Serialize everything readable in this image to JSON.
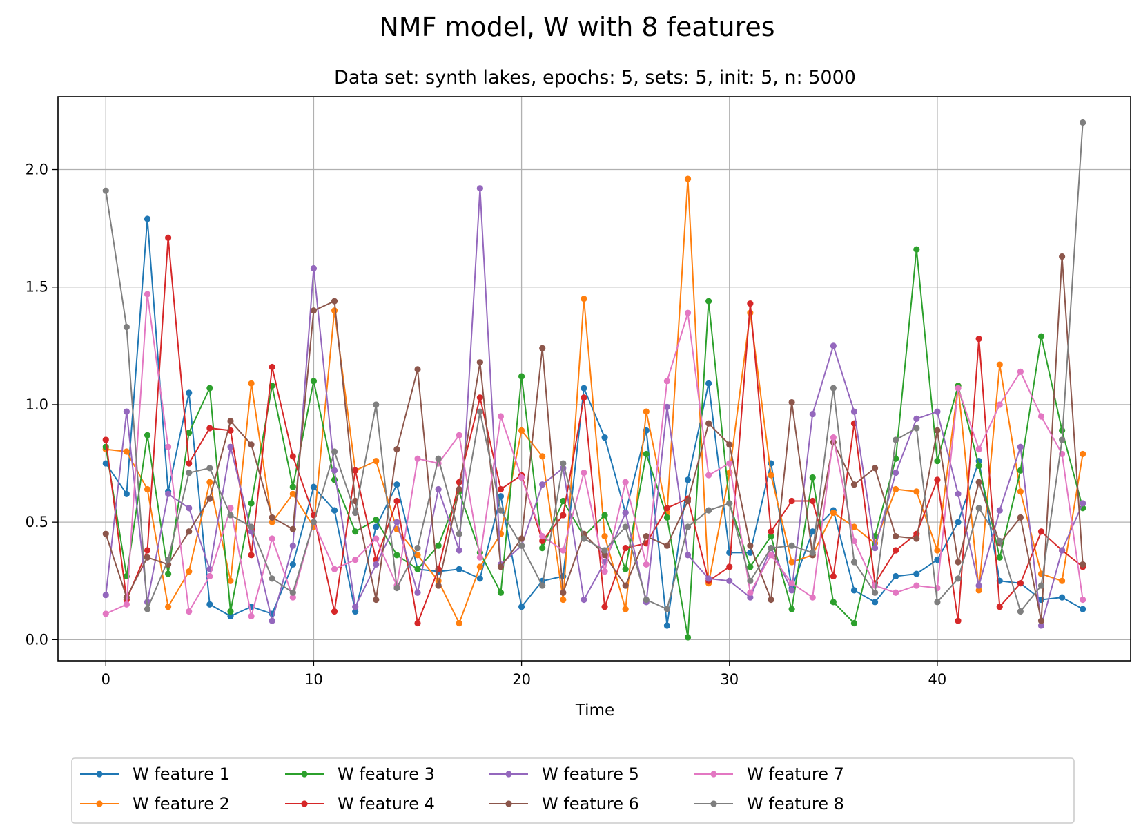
{
  "chart_data": {
    "type": "line",
    "title": "NMF model, W with 8 features",
    "subtitle": "Data set: synth lakes, epochs: 5, sets: 5, init: 5, n: 5000",
    "xlabel": "Time",
    "ylabel": "",
    "xlim": [
      -2.3,
      49.3
    ],
    "ylim": [
      -0.09,
      2.31
    ],
    "xticks": [
      0,
      10,
      20,
      30,
      40
    ],
    "yticks": [
      0.0,
      0.5,
      1.0,
      1.5,
      2.0
    ],
    "xtick_labels": [
      "0",
      "10",
      "20",
      "30",
      "40"
    ],
    "ytick_labels": [
      "0.0",
      "0.5",
      "1.0",
      "1.5",
      "2.0"
    ],
    "grid": true,
    "legend_position": "bottom-center",
    "series": [
      {
        "name": "W feature 1",
        "color": "#1f77b4",
        "values": [
          0.75,
          0.62,
          1.79,
          0.63,
          1.05,
          0.15,
          0.1,
          0.14,
          0.11,
          0.32,
          0.65,
          0.55,
          0.12,
          0.48,
          0.66,
          0.3,
          0.29,
          0.3,
          0.26,
          0.61,
          0.14,
          0.25,
          0.27,
          1.07,
          0.86,
          0.54,
          0.89,
          0.06,
          0.68,
          1.09,
          0.37,
          0.37,
          0.75,
          0.22,
          0.46,
          0.55,
          0.21,
          0.16,
          0.27,
          0.28,
          0.34,
          0.5,
          0.76,
          0.25,
          0.24,
          0.17,
          0.18,
          0.13
        ]
      },
      {
        "name": "W feature 2",
        "color": "#ff7f0e",
        "values": [
          0.81,
          0.8,
          0.64,
          0.14,
          0.29,
          0.67,
          0.25,
          1.09,
          0.5,
          0.62,
          0.48,
          1.4,
          0.72,
          0.76,
          0.47,
          0.36,
          0.25,
          0.07,
          0.31,
          0.45,
          0.89,
          0.78,
          0.17,
          1.45,
          0.44,
          0.13,
          0.97,
          0.54,
          1.96,
          0.24,
          0.71,
          1.39,
          0.7,
          0.33,
          0.36,
          0.54,
          0.48,
          0.41,
          0.64,
          0.63,
          0.38,
          1.08,
          0.21,
          1.17,
          0.63,
          0.28,
          0.25,
          0.79
        ]
      },
      {
        "name": "W feature 3",
        "color": "#2ca02c",
        "values": [
          0.82,
          0.27,
          0.87,
          0.28,
          0.88,
          1.07,
          0.12,
          0.58,
          1.08,
          0.65,
          1.1,
          0.68,
          0.46,
          0.51,
          0.36,
          0.3,
          0.4,
          0.63,
          0.37,
          0.2,
          1.12,
          0.39,
          0.59,
          0.44,
          0.53,
          0.3,
          0.79,
          0.52,
          0.01,
          1.44,
          0.58,
          0.31,
          0.44,
          0.13,
          0.69,
          0.16,
          0.07,
          0.44,
          0.77,
          1.66,
          0.76,
          1.08,
          0.74,
          0.35,
          0.72,
          1.29,
          0.89,
          0.56
        ]
      },
      {
        "name": "W feature 4",
        "color": "#d62728",
        "values": [
          0.85,
          0.17,
          0.38,
          1.71,
          0.75,
          0.9,
          0.89,
          0.36,
          1.16,
          0.78,
          0.53,
          0.12,
          0.72,
          0.34,
          0.59,
          0.07,
          0.3,
          0.67,
          1.03,
          0.64,
          0.7,
          0.42,
          0.53,
          1.03,
          0.14,
          0.39,
          0.41,
          0.56,
          0.6,
          0.25,
          0.31,
          1.43,
          0.46,
          0.59,
          0.59,
          0.27,
          0.92,
          0.24,
          0.38,
          0.45,
          0.68,
          0.08,
          1.28,
          0.14,
          0.24,
          0.46,
          0.38,
          0.31
        ]
      },
      {
        "name": "W feature 5",
        "color": "#9467bd",
        "values": [
          0.19,
          0.97,
          0.16,
          0.62,
          0.56,
          0.3,
          0.82,
          0.46,
          0.08,
          0.4,
          1.58,
          0.72,
          0.14,
          0.32,
          0.5,
          0.2,
          0.64,
          0.38,
          1.92,
          0.32,
          0.4,
          0.66,
          0.73,
          0.17,
          0.33,
          0.54,
          0.16,
          0.99,
          0.36,
          0.26,
          0.25,
          0.18,
          0.39,
          0.21,
          0.96,
          1.25,
          0.97,
          0.39,
          0.71,
          0.94,
          0.97,
          0.62,
          0.23,
          0.55,
          0.82,
          0.06,
          0.38,
          0.58
        ]
      },
      {
        "name": "W feature 6",
        "color": "#8c564b",
        "values": [
          0.45,
          0.18,
          0.35,
          0.32,
          0.46,
          0.6,
          0.93,
          0.83,
          0.52,
          0.47,
          1.4,
          1.44,
          0.59,
          0.17,
          0.81,
          1.15,
          0.23,
          0.64,
          1.18,
          0.31,
          0.43,
          1.24,
          0.2,
          0.45,
          0.36,
          0.23,
          0.44,
          0.4,
          0.59,
          0.92,
          0.83,
          0.4,
          0.17,
          1.01,
          0.36,
          0.84,
          0.66,
          0.73,
          0.44,
          0.43,
          0.89,
          0.33,
          0.67,
          0.41,
          0.52,
          0.08,
          1.63,
          0.32
        ]
      },
      {
        "name": "W feature 7",
        "color": "#e377c2",
        "values": [
          0.11,
          0.15,
          1.47,
          0.82,
          0.12,
          0.27,
          0.56,
          0.1,
          0.43,
          0.18,
          0.5,
          0.3,
          0.34,
          0.43,
          0.23,
          0.77,
          0.75,
          0.87,
          0.35,
          0.95,
          0.69,
          0.44,
          0.38,
          0.71,
          0.29,
          0.67,
          0.32,
          1.1,
          1.39,
          0.7,
          0.75,
          0.2,
          0.36,
          0.24,
          0.18,
          0.86,
          0.42,
          0.23,
          0.2,
          0.23,
          0.22,
          1.07,
          0.81,
          1.0,
          1.14,
          0.95,
          0.79,
          0.17
        ]
      },
      {
        "name": "W feature 8",
        "color": "#7f7f7f",
        "values": [
          1.91,
          1.33,
          0.13,
          0.34,
          0.71,
          0.73,
          0.53,
          0.48,
          0.26,
          0.2,
          0.5,
          0.8,
          0.54,
          1.0,
          0.22,
          0.39,
          0.77,
          0.45,
          0.97,
          0.55,
          0.4,
          0.23,
          0.75,
          0.43,
          0.38,
          0.48,
          0.17,
          0.13,
          0.48,
          0.55,
          0.58,
          0.25,
          0.39,
          0.4,
          0.37,
          1.07,
          0.33,
          0.2,
          0.85,
          0.9,
          0.16,
          0.26,
          0.56,
          0.42,
          0.12,
          0.23,
          0.85,
          2.2
        ]
      }
    ]
  }
}
